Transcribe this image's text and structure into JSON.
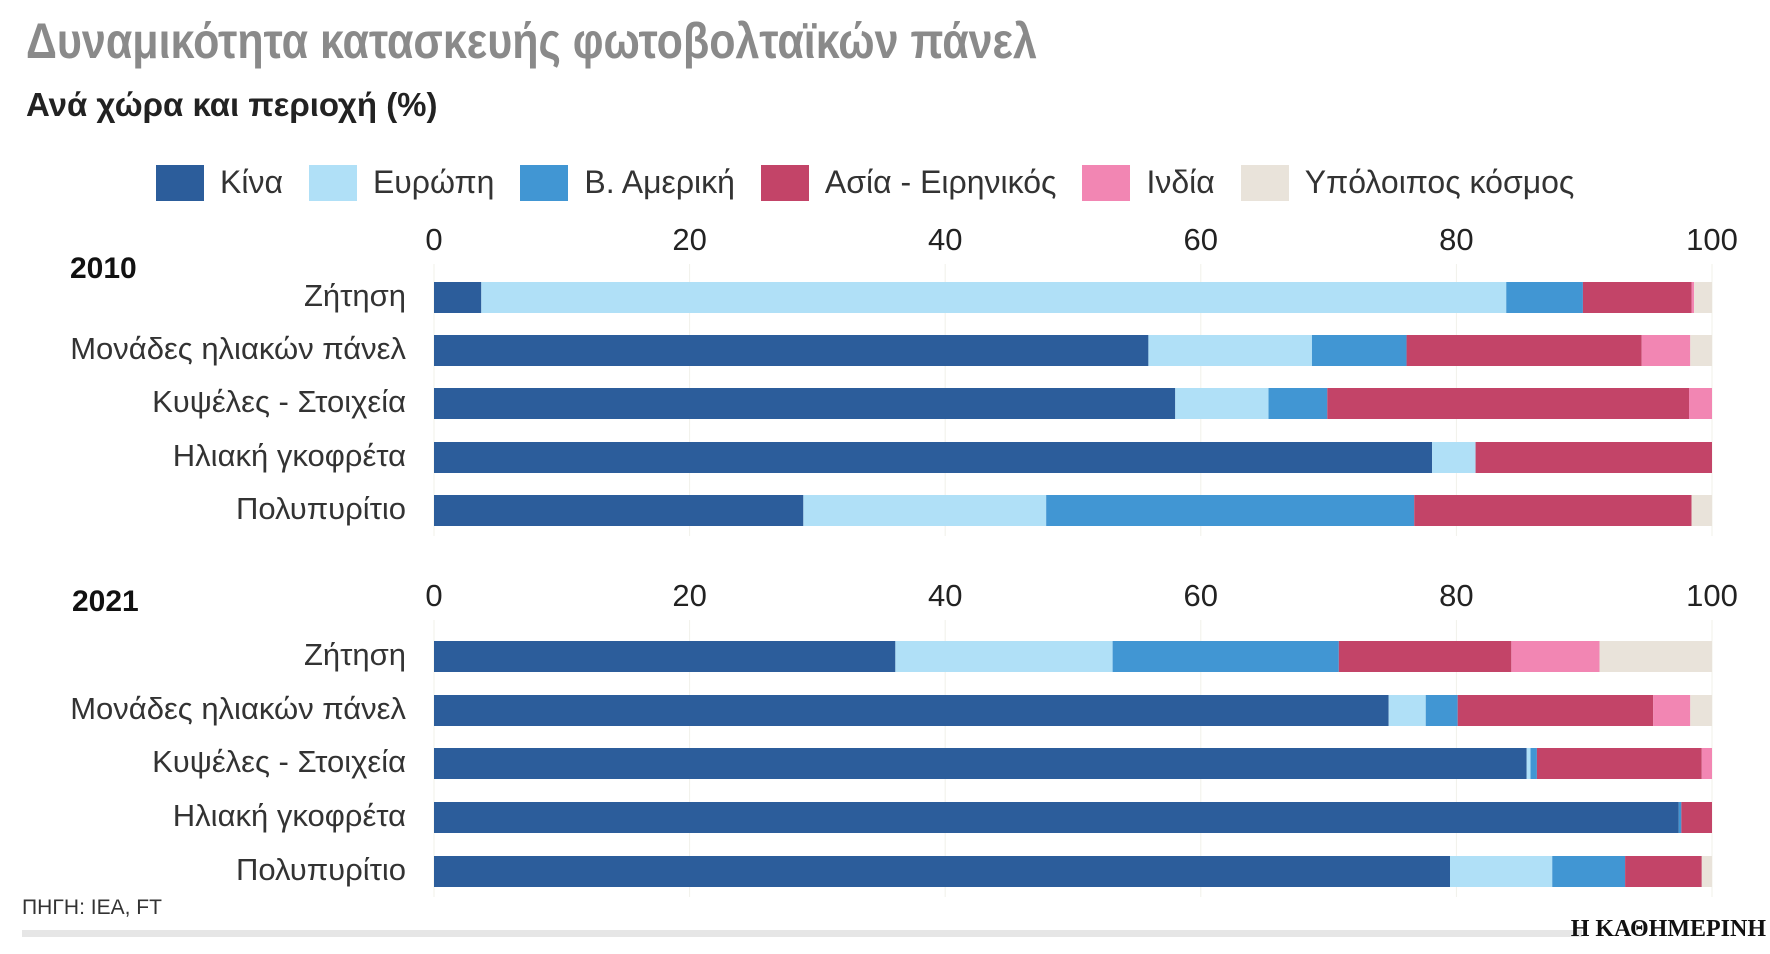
{
  "title": "Δυναμικότητα κατασκευής φωτοβολταϊκών πάνελ",
  "subtitle": "Ανά χώρα και περιοχή (%)",
  "source": "ΠΗΓΗ: IEA, FT",
  "logo": "Η ΚΑΘΗΜΕΡΙΝΗ",
  "chart_data": [
    {
      "type": "bar",
      "stacked": true,
      "orientation": "horizontal",
      "title": "2010",
      "xlim": [
        0,
        100
      ],
      "xticks": [
        0,
        20,
        40,
        60,
        80,
        100
      ],
      "categories": [
        "Ζήτηση",
        "Μονάδες ηλιακών πάνελ",
        "Κυψέλες - Στοιχεία",
        "Ηλιακή γκοφρέτα",
        "Πολυπυρίτιο"
      ],
      "series": [
        {
          "name": "Κίνα",
          "color": "#2c5d9b",
          "values": [
            3.7,
            55.9,
            58.0,
            78.1,
            28.9
          ]
        },
        {
          "name": "Ευρώπη",
          "color": "#b0e0f7",
          "values": [
            80.2,
            12.8,
            7.3,
            3.4,
            19.0
          ]
        },
        {
          "name": "Β. Αμερική",
          "color": "#4196d3",
          "values": [
            6.0,
            7.4,
            4.6,
            0,
            28.8
          ]
        },
        {
          "name": "Ασία - Ειρηνικός",
          "color": "#c34468",
          "values": [
            8.5,
            18.4,
            28.3,
            18.5,
            21.7
          ]
        },
        {
          "name": "Ινδία",
          "color": "#f286b3",
          "values": [
            0.2,
            3.8,
            1.8,
            0,
            0
          ]
        },
        {
          "name": "Υπόλοιπος κόσμος",
          "color": "#e9e3da",
          "values": [
            1.4,
            1.7,
            0,
            0,
            1.6
          ]
        }
      ]
    },
    {
      "type": "bar",
      "stacked": true,
      "orientation": "horizontal",
      "title": "2021",
      "xlim": [
        0,
        100
      ],
      "xticks": [
        0,
        20,
        40,
        60,
        80,
        100
      ],
      "categories": [
        "Ζήτηση",
        "Μονάδες ηλιακών πάνελ",
        "Κυψέλες - Στοιχεία",
        "Ηλιακή γκοφρέτα",
        "Πολυπυρίτιο"
      ],
      "series": [
        {
          "name": "Κίνα",
          "color": "#2c5d9b",
          "values": [
            36.1,
            74.7,
            85.5,
            97.4,
            79.5
          ]
        },
        {
          "name": "Ευρώπη",
          "color": "#b0e0f7",
          "values": [
            17.0,
            2.9,
            0.3,
            0,
            8.0
          ]
        },
        {
          "name": "Β. Αμερική",
          "color": "#4196d3",
          "values": [
            17.7,
            2.5,
            0.5,
            0.2,
            5.7
          ]
        },
        {
          "name": "Ασία - Ειρηνικός",
          "color": "#c34468",
          "values": [
            13.5,
            15.3,
            12.9,
            2.4,
            6.0
          ]
        },
        {
          "name": "Ινδία",
          "color": "#f286b3",
          "values": [
            6.9,
            2.9,
            0.8,
            0,
            0
          ]
        },
        {
          "name": "Υπόλοιπος κόσμος",
          "color": "#e9e3da",
          "values": [
            8.8,
            1.7,
            0,
            0,
            0.8
          ]
        }
      ]
    }
  ]
}
